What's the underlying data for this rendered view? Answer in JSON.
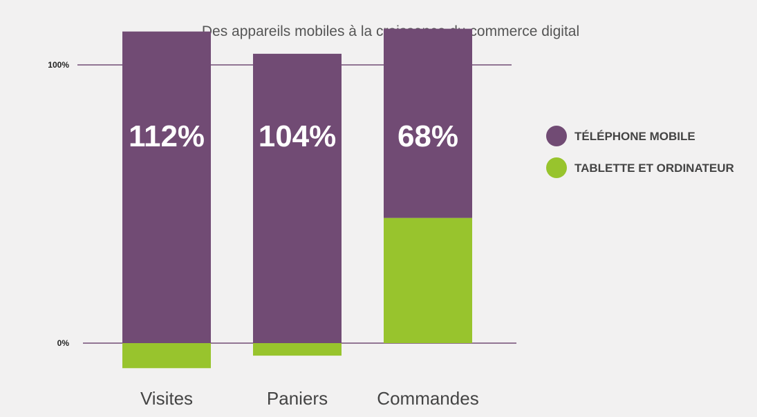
{
  "chart_data": {
    "type": "bar",
    "title": "Des appareils mobiles à la croissance du commerce digital",
    "categories": [
      "Visites",
      "Paniers",
      "Commandes"
    ],
    "series": [
      {
        "name": "TÉLÉPHONE MOBILE",
        "color": "#714b74",
        "values": [
          112,
          104,
          68
        ],
        "labels": [
          "112%",
          "104%",
          "68%"
        ]
      },
      {
        "name": "TABLETTE ET ORDINATEUR",
        "color": "#98c42d",
        "values": [
          -9,
          -4.5,
          45
        ]
      }
    ],
    "y_ticks": [
      {
        "value": 0,
        "label": "0%"
      },
      {
        "value": 100,
        "label": "100%"
      }
    ],
    "ylim": [
      -12,
      115
    ],
    "stacking": "mobile segment starts at the top of the tablet/computer segment; negative tablet/computer values extend below 0%",
    "gridline_color": "#714b74",
    "legend_position": "right",
    "grid": false
  }
}
